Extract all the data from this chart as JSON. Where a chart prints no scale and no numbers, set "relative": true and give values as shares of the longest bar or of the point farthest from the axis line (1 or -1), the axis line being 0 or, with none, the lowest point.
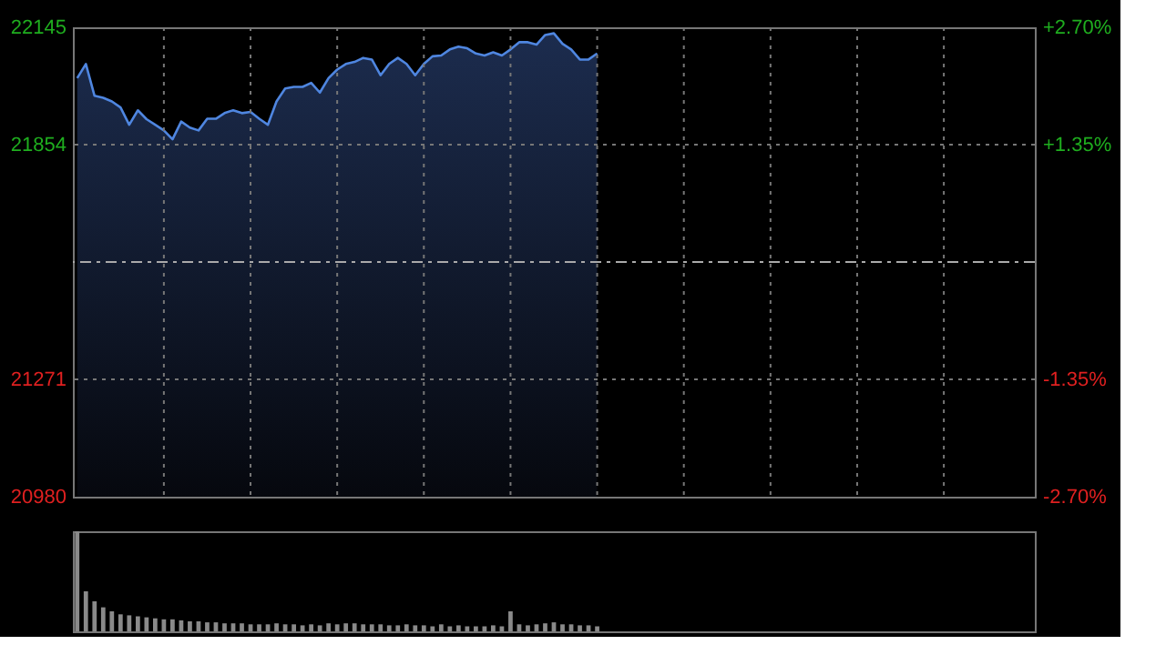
{
  "chart_data": [
    {
      "type": "area",
      "categories": [
        null,
        null,
        null,
        null,
        null,
        null,
        null,
        null,
        null,
        null,
        null,
        null,
        null,
        null,
        null,
        null,
        null,
        null,
        null,
        null,
        null,
        null,
        null,
        null,
        null,
        null,
        null,
        null,
        null,
        null,
        null,
        null,
        null,
        null,
        null,
        null,
        null,
        null,
        null,
        null,
        null,
        null,
        null,
        null,
        null,
        null,
        null,
        null,
        null,
        null,
        null,
        null,
        null,
        null,
        null,
        null,
        null,
        null,
        null,
        null,
        null,
        null,
        null,
        null,
        null,
        null,
        null,
        null,
        null,
        null,
        null,
        null,
        null,
        null,
        null,
        null,
        null,
        null,
        null,
        null,
        null,
        null,
        null,
        null,
        null,
        null,
        null,
        null,
        null,
        null,
        null,
        null,
        null,
        null,
        null,
        null,
        null,
        null,
        null,
        null,
        null,
        null,
        null,
        null,
        null,
        null,
        null,
        null,
        null,
        null,
        null
      ],
      "series": [
        {
          "color": "#4f86e0",
          "values": [
            22019,
            22054,
            21975,
            21970,
            21961,
            21946,
            21903,
            21939,
            21917,
            21903,
            21889,
            21867,
            21911,
            21896,
            21889,
            21918,
            21918,
            21932,
            21939,
            21932,
            21935,
            21918,
            21903,
            21961,
            21993,
            21997,
            21997,
            22007,
            21983,
            22019,
            22040,
            22054,
            22059,
            22069,
            22065,
            22026,
            22054,
            22069,
            22054,
            22026,
            22054,
            22073,
            22075,
            22090,
            22097,
            22093,
            22080,
            22075,
            22083,
            22075,
            22090,
            22108,
            22108,
            22102,
            22126,
            22130,
            22104,
            22090,
            22065,
            22065,
            22080,
            null,
            null,
            null,
            null,
            null,
            null,
            null,
            null,
            null,
            null,
            null,
            null,
            null,
            null,
            null,
            null,
            null,
            null,
            null,
            null,
            null,
            null,
            null,
            null,
            null,
            null,
            null,
            null,
            null,
            null,
            null,
            null,
            null,
            null,
            null,
            null,
            null,
            null,
            null,
            null,
            null,
            null,
            null,
            null,
            null,
            null,
            null,
            null,
            null,
            null
          ]
        }
      ],
      "ylim": [
        20980,
        22145
      ],
      "yticks": [
        {
          "value": 20980,
          "label": "20980"
        },
        {
          "value": 21271,
          "label": "21271"
        },
        {
          "value": 21854,
          "label": "21854"
        },
        {
          "value": 22145,
          "label": "22145"
        }
      ],
      "y2lim": [
        -2.7,
        2.7
      ],
      "y2ticks": [
        {
          "value": -2.7,
          "label": "-2.70%"
        },
        {
          "value": -1.35,
          "label": "-1.35%"
        },
        {
          "value": 1.35,
          "label": "+1.35%"
        },
        {
          "value": 2.7,
          "label": "+2.70%"
        }
      ],
      "ref_lines": [
        {
          "axis": "y",
          "value": 21562.5,
          "line_style": "dashed"
        }
      ],
      "grid": true,
      "tick_labels": "y"
    },
    {
      "type": "bar",
      "relative": true,
      "tick_labels": false,
      "categories": [
        null,
        null,
        null,
        null,
        null,
        null,
        null,
        null,
        null,
        null,
        null,
        null,
        null,
        null,
        null,
        null,
        null,
        null,
        null,
        null,
        null,
        null,
        null,
        null,
        null,
        null,
        null,
        null,
        null,
        null,
        null,
        null,
        null,
        null,
        null,
        null,
        null,
        null,
        null,
        null,
        null,
        null,
        null,
        null,
        null,
        null,
        null,
        null,
        null,
        null,
        null,
        null,
        null,
        null,
        null,
        null,
        null,
        null,
        null,
        null,
        null,
        null,
        null,
        null,
        null,
        null,
        null,
        null,
        null,
        null,
        null,
        null,
        null,
        null,
        null,
        null,
        null,
        null,
        null,
        null,
        null,
        null,
        null,
        null,
        null,
        null,
        null,
        null,
        null,
        null,
        null,
        null,
        null,
        null,
        null,
        null,
        null,
        null,
        null,
        null,
        null,
        null,
        null,
        null,
        null,
        null,
        null,
        null,
        null,
        null,
        null
      ],
      "series": [
        {
          "color": "#8a8a8a",
          "values": [
            1.0,
            0.4,
            0.3,
            0.24,
            0.2,
            0.17,
            0.16,
            0.15,
            0.14,
            0.13,
            0.12,
            0.12,
            0.11,
            0.1,
            0.1,
            0.09,
            0.09,
            0.08,
            0.08,
            0.08,
            0.07,
            0.07,
            0.07,
            0.08,
            0.07,
            0.07,
            0.06,
            0.07,
            0.06,
            0.08,
            0.07,
            0.08,
            0.08,
            0.07,
            0.07,
            0.07,
            0.06,
            0.06,
            0.07,
            0.06,
            0.06,
            0.05,
            0.07,
            0.05,
            0.06,
            0.05,
            0.05,
            0.05,
            0.06,
            0.05,
            0.2,
            0.07,
            0.06,
            0.07,
            0.08,
            0.09,
            0.07,
            0.07,
            0.06,
            0.06,
            0.05,
            null,
            null,
            null,
            null,
            null,
            null,
            null,
            null,
            null,
            null,
            null,
            null,
            null,
            null,
            null,
            null,
            null,
            null,
            null,
            null,
            null,
            null,
            null,
            null,
            null,
            null,
            null,
            null,
            null,
            null,
            null,
            null,
            null,
            null,
            null,
            null,
            null,
            null,
            null,
            null,
            null,
            null,
            null,
            null,
            null,
            null,
            null,
            null,
            null,
            null
          ]
        }
      ]
    }
  ]
}
